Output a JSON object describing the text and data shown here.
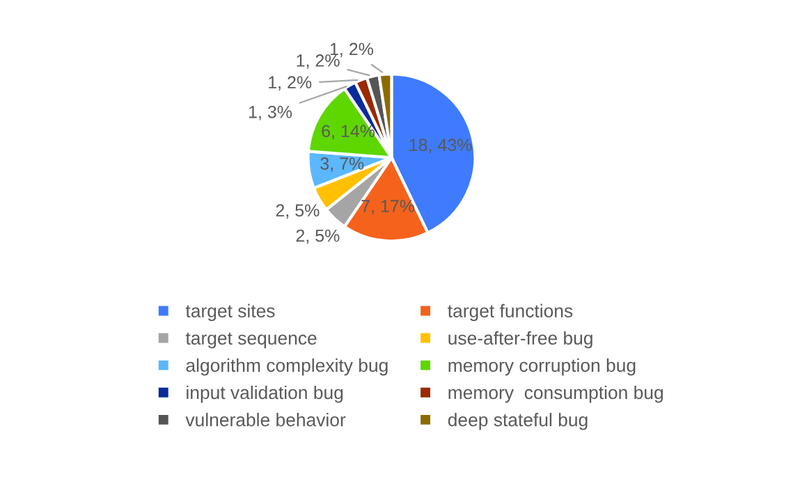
{
  "chart_data": {
    "type": "pie",
    "categories": [
      "target sites",
      "target functions",
      "target sequence",
      "use-after-free bug",
      "algorithm complexity bug",
      "memory corruption bug",
      "input validation bug",
      "memory  consumption bug",
      "vulnerable behavior",
      "deep stateful bug"
    ],
    "values": [
      18,
      7,
      2,
      2,
      3,
      6,
      1,
      1,
      1,
      1
    ],
    "colors": [
      "#3f7bff",
      "#f5621c",
      "#a5a5a5",
      "#ffc000",
      "#5bb7ff",
      "#5ed600",
      "#0b2b9a",
      "#9a2a00",
      "#555555",
      "#8c6b00"
    ],
    "value_labels": [
      "18, 43%",
      "7, 17%",
      "2, 5%",
      "2, 5%",
      "3, 7%",
      "6, 14%",
      "1, 3%",
      "1, 2%",
      "1, 2%",
      "1, 2%"
    ],
    "legend": "bottom"
  }
}
